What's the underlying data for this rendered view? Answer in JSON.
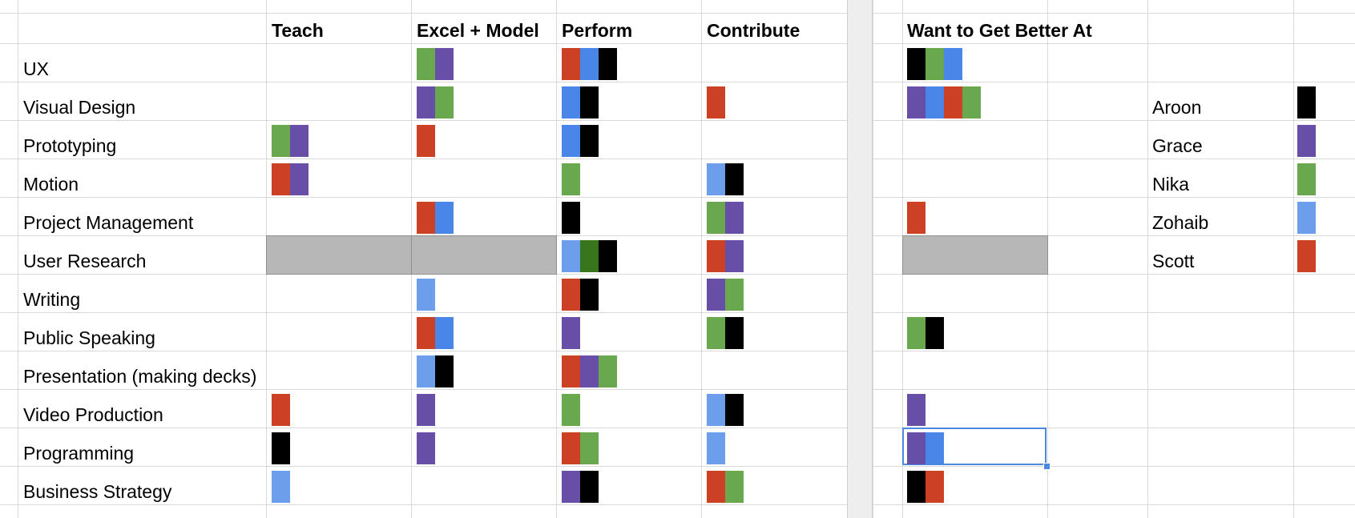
{
  "colors": {
    "red": "#cc4125",
    "purple": "#674ea7",
    "green": "#6aa84f",
    "blue": "#4a86e8",
    "lightblue": "#6d9eeb",
    "black": "#000000",
    "darkgreen": "#38761d"
  },
  "headers": {
    "teach": "Teach",
    "excel_model": "Excel + Model",
    "perform": "Perform",
    "contribute": "Contribute",
    "want_better": "Want to Get Better At"
  },
  "rows": [
    {
      "label": "UX",
      "teach": [],
      "excel": [
        "green",
        "purple"
      ],
      "perform": [
        "red",
        "blue",
        "black"
      ],
      "contribute": [],
      "want": [
        "black",
        "green",
        "blue"
      ]
    },
    {
      "label": "Visual Design",
      "teach": [],
      "excel": [
        "purple",
        "green"
      ],
      "perform": [
        "blue",
        "black"
      ],
      "contribute": [
        "red"
      ],
      "want": [
        "purple",
        "blue",
        "red",
        "green"
      ]
    },
    {
      "label": "Prototyping",
      "teach": [
        "green",
        "purple"
      ],
      "excel": [
        "red"
      ],
      "perform": [
        "blue",
        "black"
      ],
      "contribute": [],
      "want": []
    },
    {
      "label": "Motion",
      "teach": [
        "red",
        "purple"
      ],
      "excel": [],
      "perform": [
        "green"
      ],
      "contribute": [
        "lightblue",
        "black"
      ],
      "want": []
    },
    {
      "label": "Project Management",
      "teach": [],
      "excel": [
        "red",
        "blue"
      ],
      "perform": [
        "black"
      ],
      "contribute": [
        "green",
        "purple"
      ],
      "want": [
        "red"
      ]
    },
    {
      "label": "User Research",
      "teach": [],
      "excel": [],
      "perform": [
        "lightblue",
        "darkgreen",
        "black"
      ],
      "contribute": [
        "red",
        "purple"
      ],
      "want": [],
      "grayed": [
        "teach",
        "excel",
        "want"
      ]
    },
    {
      "label": "Writing",
      "teach": [],
      "excel": [
        "lightblue"
      ],
      "perform": [
        "red",
        "black"
      ],
      "contribute": [
        "purple",
        "green"
      ],
      "want": []
    },
    {
      "label": "Public Speaking",
      "teach": [],
      "excel": [
        "red",
        "blue"
      ],
      "perform": [
        "purple"
      ],
      "contribute": [
        "green",
        "black"
      ],
      "want": [
        "green",
        "black"
      ]
    },
    {
      "label": "Presentation (making decks)",
      "teach": [],
      "excel": [
        "lightblue",
        "black"
      ],
      "perform": [
        "red",
        "purple",
        "green"
      ],
      "contribute": [],
      "want": []
    },
    {
      "label": "Video Production",
      "teach": [
        "red"
      ],
      "excel": [
        "purple"
      ],
      "perform": [
        "green"
      ],
      "contribute": [
        "lightblue",
        "black"
      ],
      "want": [
        "purple"
      ]
    },
    {
      "label": "Programming",
      "teach": [
        "black"
      ],
      "excel": [
        "purple"
      ],
      "perform": [
        "red",
        "green"
      ],
      "contribute": [
        "lightblue"
      ],
      "want": [
        "purple",
        "blue"
      ]
    },
    {
      "label": "Business Strategy",
      "teach": [
        "lightblue"
      ],
      "excel": [],
      "perform": [
        "purple",
        "black"
      ],
      "contribute": [
        "red",
        "green"
      ],
      "want": [
        "black",
        "red"
      ]
    }
  ],
  "people": [
    {
      "name": "Aroon",
      "color": "black"
    },
    {
      "name": "Grace",
      "color": "purple"
    },
    {
      "name": "Nika",
      "color": "green"
    },
    {
      "name": "Zohaib",
      "color": "lightblue"
    },
    {
      "name": "Scott",
      "color": "red"
    }
  ]
}
